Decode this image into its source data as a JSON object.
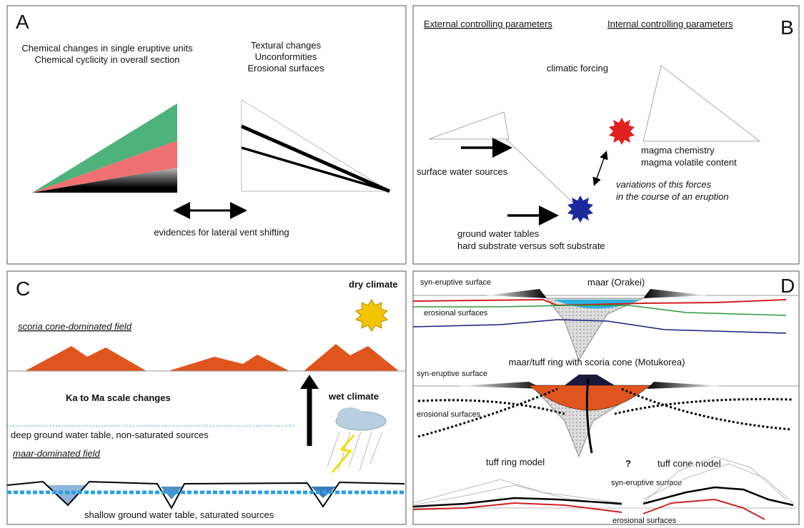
{
  "panels": {
    "A": {
      "label": "A",
      "left_caption": [
        "Chemical changes in single eruptive units",
        "Chemical cyclicity in overall section"
      ],
      "right_caption": [
        "Textural changes",
        "Unconformities",
        "Erosional surfaces"
      ],
      "bottom_caption": "evidences for lateral vent shifting"
    },
    "B": {
      "label": "B",
      "external_heading": "External controlling parameters",
      "internal_heading": "Internal controlling parameters",
      "climatic": "climatic forcing",
      "magma": [
        "magma chemistry",
        "magma volatile content"
      ],
      "surface": "surface water sources",
      "variations": [
        "variations of this forces",
        "in the course of an eruption"
      ],
      "ground": [
        "ground water tables",
        "hard substrate versus soft substrate"
      ]
    },
    "C": {
      "label": "C",
      "dry": "dry climate",
      "scoria": "scoria cone-dominated field",
      "scale": "Ka to Ma scale changes",
      "wet": "wet climate",
      "deep": "deep ground water table, non-saturated sources",
      "maar": "maar-dominated field",
      "shallow": "shallow ground water table, saturated sources"
    },
    "D": {
      "label": "D",
      "syn1": "syn-eruptive surface",
      "orakei": "maar (Orakei)",
      "eros1": "erosional surfaces",
      "motukorea": "maar/tuff ring with scoria cone (Motukorea)",
      "syn2": "syn-eruptive surface",
      "eros2": "erosional surfaces",
      "tuff_ring": "tuff ring model",
      "question": "?",
      "tuff_cone": "tuff cone model",
      "syn3": "syn-eruptive surface",
      "eros3": "erosional surfaces"
    }
  }
}
